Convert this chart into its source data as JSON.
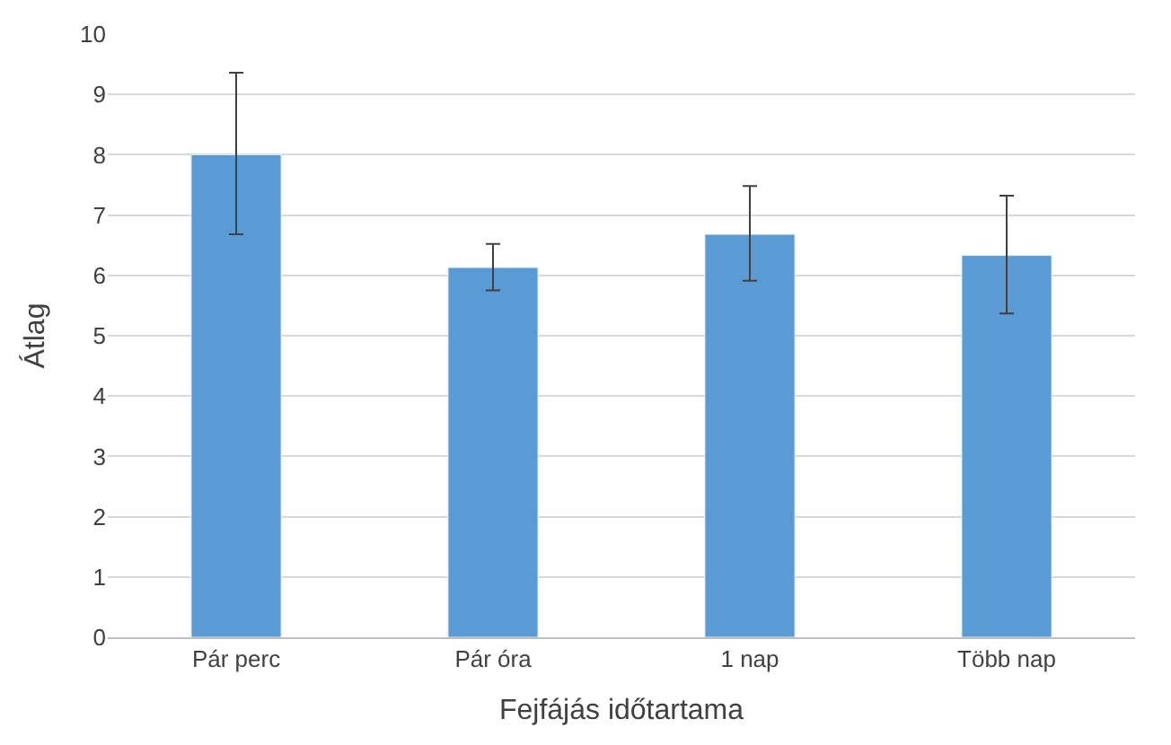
{
  "chart_data": {
    "type": "bar",
    "xlabel": "Fejfájás időtartama",
    "ylabel": "Átlag",
    "categories": [
      "Pár perc",
      "Pár óra",
      "1 nap",
      "Több nap"
    ],
    "values": [
      8.0,
      6.13,
      6.68,
      6.33
    ],
    "errors": [
      [
        6.68,
        9.36
      ],
      [
        5.75,
        6.52
      ],
      [
        5.91,
        7.48
      ],
      [
        5.37,
        7.32
      ]
    ],
    "color": "#5b9bd5",
    "ylim": [
      0,
      10
    ],
    "yticks": [
      0,
      1,
      2,
      3,
      4,
      5,
      6,
      7,
      8,
      9,
      10
    ],
    "grid": "y",
    "legend": false
  }
}
